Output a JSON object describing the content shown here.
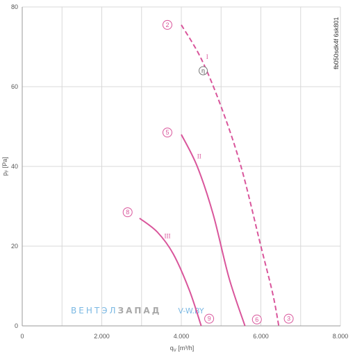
{
  "chart_data": {
    "type": "line",
    "xlabel": "q_V [m³/h]",
    "xlabel_main": "q",
    "xlabel_sub": "V",
    "xlabel_unit": " [m³/h]",
    "ylabel": "p_F [Pa]",
    "ylabel_main": "p",
    "ylabel_sub": "F",
    "ylabel_unit": " [Pa]",
    "xlim": [
      0,
      8000
    ],
    "ylim": [
      0,
      80
    ],
    "x_ticks": [
      0,
      2000,
      4000,
      6000,
      8000
    ],
    "x_tick_labels": [
      "0",
      "2.000",
      "4.000",
      "6.000",
      "8.000"
    ],
    "y_ticks": [
      0,
      20,
      40,
      60,
      80
    ],
    "y_tick_labels": [
      "0",
      "20",
      "40",
      "60",
      "80"
    ],
    "grid": true,
    "code_label": "fb050sdk4f 6sk801",
    "efficiency_marker": "η",
    "efficiency_point": [
      4550,
      64
    ],
    "series": [
      {
        "name": "I",
        "dashed": true,
        "label_point": [
          4650,
          67
        ],
        "x": [
          4000,
          4500,
          5000,
          5500,
          6000,
          6300,
          6450
        ],
        "y": [
          75.5,
          67,
          55,
          40,
          20,
          8,
          0
        ],
        "markers": [
          {
            "id": "2",
            "x": 3650,
            "y": 75.5
          },
          {
            "id": "3",
            "x": 6700,
            "y": 1.8
          }
        ]
      },
      {
        "name": "II",
        "dashed": false,
        "label_point": [
          4450,
          42
        ],
        "x": [
          4000,
          4400,
          4800,
          5200,
          5600
        ],
        "y": [
          48,
          40,
          28,
          12,
          0
        ],
        "markers": [
          {
            "id": "5",
            "x": 3650,
            "y": 48.5
          },
          {
            "id": "6",
            "x": 5900,
            "y": 1.6
          }
        ]
      },
      {
        "name": "III",
        "dashed": false,
        "label_point": [
          3650,
          22
        ],
        "x": [
          2950,
          3400,
          3800,
          4200,
          4500
        ],
        "y": [
          27,
          23.5,
          18,
          9,
          0
        ],
        "markers": [
          {
            "id": "8",
            "x": 2650,
            "y": 28.5
          },
          {
            "id": "9",
            "x": 4700,
            "y": 1.8
          }
        ]
      }
    ]
  },
  "watermark": {
    "left": "ВЕНТЭЛ",
    "mid": "ЗАПАД",
    "right": "V-W.BY"
  },
  "colors": {
    "curve": "#d9559b",
    "grid": "#d8d8d8",
    "axis_text": "#555555"
  }
}
